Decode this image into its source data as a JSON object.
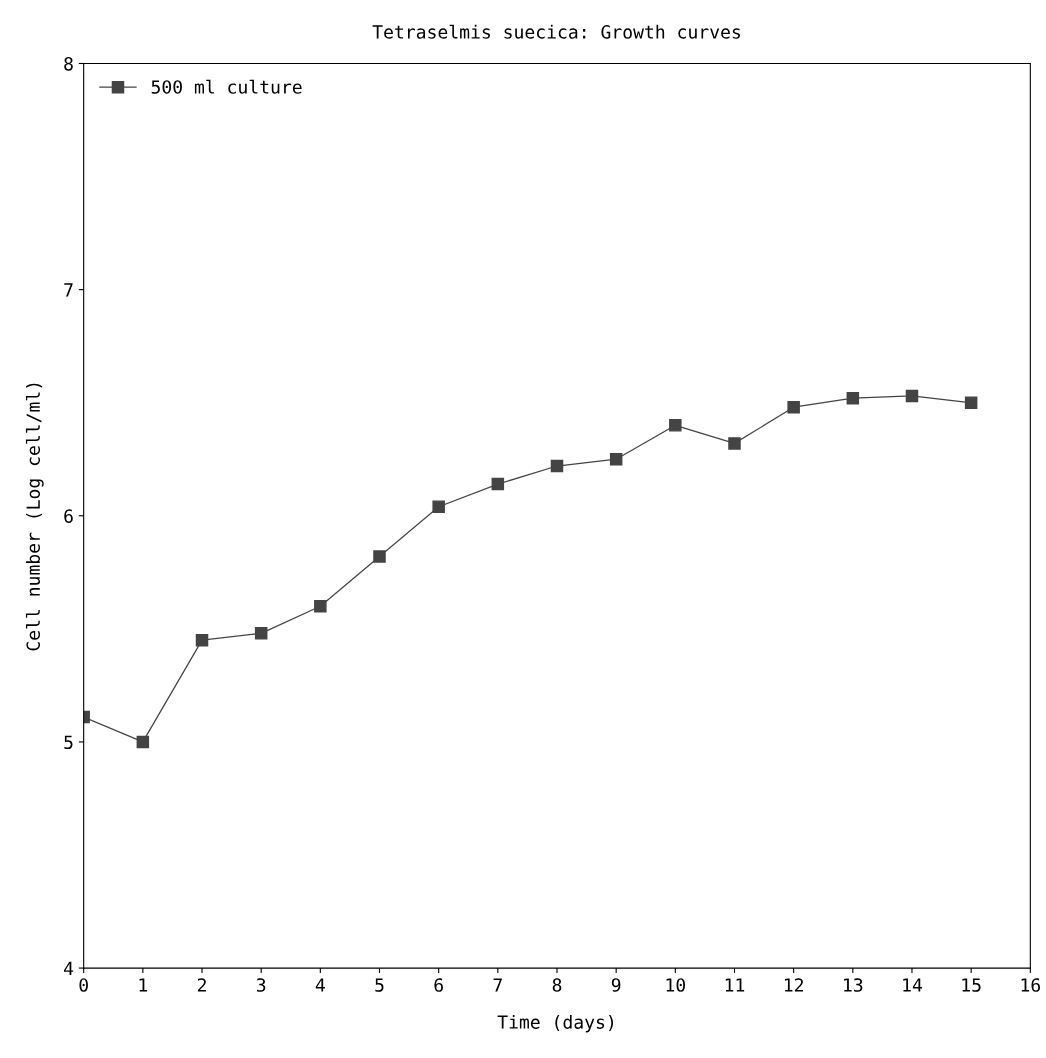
{
  "chart_data": {
    "type": "line",
    "title": "Tetraselmis suecica: Growth curves",
    "xlabel": "Time (days)",
    "ylabel": "Cell number (Log cell/ml)",
    "x": [
      0,
      1,
      2,
      3,
      4,
      5,
      6,
      7,
      8,
      9,
      10,
      11,
      12,
      13,
      14,
      15
    ],
    "series": [
      {
        "name": "500 ml culture",
        "color": "#444444",
        "values": [
          5.11,
          5.0,
          5.45,
          5.48,
          5.6,
          5.82,
          6.04,
          6.14,
          6.22,
          6.25,
          6.4,
          6.32,
          6.48,
          6.52,
          6.53,
          6.5
        ]
      }
    ],
    "xlim": [
      0,
      16
    ],
    "xticks": [
      0,
      1,
      2,
      3,
      4,
      5,
      6,
      7,
      8,
      9,
      10,
      11,
      12,
      13,
      14,
      15,
      16
    ],
    "ylim": [
      4,
      8
    ],
    "yticks": [
      4,
      5,
      6,
      7,
      8
    ],
    "marker": "square",
    "line_style": "solid",
    "grid": false,
    "legend": "top left"
  }
}
